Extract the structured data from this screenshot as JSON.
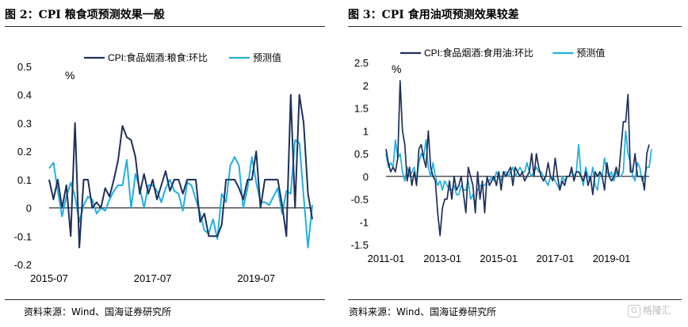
{
  "panels": [
    {
      "title": "图 2：CPI 粮食项预测效果一般",
      "source": "资料来源：Wind、国海证券研究所"
    },
    {
      "title": "图 3：CPI 食用油项预测效果较差",
      "source": "资料来源：Wind、国海证券研究所"
    }
  ],
  "watermark": {
    "icon": "G",
    "text": "格隆汇"
  },
  "colors": {
    "actual": "#1f2f5c",
    "predicted": "#1fb0e0"
  },
  "chart_data": [
    {
      "type": "line",
      "unit_label": "%",
      "ylim": [
        -0.2,
        0.5
      ],
      "yticks": [
        -0.2,
        -0.1,
        0,
        0.1,
        0.2,
        0.3,
        0.4,
        0.5
      ],
      "ytick_labels": [
        "-0.2",
        "-0.1",
        "0",
        "0.1",
        "0.2",
        "0.3",
        "0.4",
        "0.5"
      ],
      "x_start": "2015-07",
      "xticks": [
        {
          "index": 0,
          "label": "2015-07"
        },
        {
          "index": 24,
          "label": "2017-07"
        },
        {
          "index": 48,
          "label": "2019-07"
        }
      ],
      "legend": [
        "CPI:食品烟酒:粮食:环比",
        "预测值"
      ],
      "series": [
        {
          "name": "CPI:食品烟酒:粮食:环比",
          "values": [
            0.1,
            0.03,
            0.1,
            0.0,
            0.08,
            -0.1,
            0.3,
            -0.14,
            0.1,
            0.1,
            0.0,
            0.02,
            0.0,
            0.07,
            0.04,
            0.1,
            0.17,
            0.29,
            0.25,
            0.24,
            0.18,
            0.05,
            0.12,
            0.05,
            0.1,
            0.03,
            0.08,
            0.13,
            0.06,
            0.1,
            0.1,
            0.05,
            0.1,
            0.1,
            0.1,
            -0.05,
            -0.02,
            -0.1,
            -0.1,
            -0.1,
            -0.06,
            0.1,
            0.1,
            0.1,
            0.07,
            0.03,
            0.1,
            0.1,
            0.2,
            0.0,
            0.1,
            0.1,
            0.1,
            0.1,
            0.01,
            -0.1,
            0.4,
            0.0,
            0.4,
            0.3,
            0.05,
            -0.04
          ]
        },
        {
          "name": "预测值",
          "values": [
            0.14,
            0.16,
            0.06,
            -0.03,
            0.04,
            0.09,
            0.04,
            -0.05,
            0.01,
            0.04,
            0.03,
            -0.02,
            0.0,
            -0.01,
            0.03,
            0.06,
            0.08,
            0.08,
            0.17,
            0.0,
            0.12,
            0.07,
            0.0,
            0.08,
            0.08,
            0.06,
            0.02,
            0.07,
            0.1,
            0.06,
            0.05,
            -0.01,
            0.09,
            0.08,
            0.03,
            -0.02,
            -0.08,
            -0.09,
            -0.04,
            -0.11,
            0.05,
            0.02,
            0.15,
            0.18,
            0.15,
            0.0,
            0.07,
            0.18,
            0.09,
            0.02,
            0.02,
            0.01,
            0.04,
            0.07,
            -0.02,
            0.06,
            0.05,
            0.24,
            0.23,
            0.04,
            -0.14,
            0.01
          ]
        }
      ]
    },
    {
      "type": "line",
      "unit_label": "%",
      "ylim": [
        -1.5,
        2.5
      ],
      "yticks": [
        -1.5,
        -1,
        -0.5,
        0,
        0.5,
        1,
        1.5,
        2,
        2.5
      ],
      "ytick_labels": [
        "-1.5",
        "-1",
        "-0.5",
        "0",
        "0.5",
        "1",
        "1.5",
        "2",
        "2.5"
      ],
      "x_start": "2011-01",
      "xticks": [
        {
          "index": 0,
          "label": "2011-01"
        },
        {
          "index": 24,
          "label": "2013-01"
        },
        {
          "index": 48,
          "label": "2015-01"
        },
        {
          "index": 72,
          "label": "2017-01"
        },
        {
          "index": 96,
          "label": "2019-01"
        }
      ],
      "legend": [
        "CPI:食品烟酒:食用油:环比",
        "预测值"
      ],
      "series": [
        {
          "name": "CPI:食品烟酒:食用油:环比",
          "values": [
            0.6,
            0.3,
            0.1,
            0.2,
            0.1,
            0.4,
            2.1,
            1.0,
            0.7,
            -0.1,
            0.2,
            -0.2,
            0.1,
            -0.2,
            0.6,
            0.7,
            0.4,
            0.2,
            1.0,
            0.2,
            0.0,
            -0.1,
            -0.8,
            -1.3,
            -0.7,
            -0.5,
            -0.5,
            -0.1,
            -0.5,
            0.0,
            -0.3,
            -0.2,
            0.0,
            -0.4,
            -0.8,
            0.2,
            0.0,
            -0.2,
            -0.8,
            0.1,
            -0.5,
            -0.1,
            -0.8,
            0.0,
            -0.2,
            -0.1,
            0.0,
            -0.2,
            0.1,
            -0.3,
            0.1,
            0.0,
            0.1,
            0.2,
            -0.2,
            0.2,
            0.1,
            0.0,
            0.1,
            -0.1,
            0.0,
            0.1,
            0.5,
            0.0,
            0.5,
            0.2,
            0.0,
            -0.1,
            0.0,
            0.3,
            0.0,
            -0.1,
            0.4,
            0.0,
            -0.3,
            -0.1,
            -0.2,
            0.0,
            0.0,
            0.2,
            -0.1,
            0.1,
            0.1,
            0.0,
            -0.1,
            0.1,
            -0.2,
            0.0,
            -0.4,
            0.1,
            0.0,
            0.1,
            0.0,
            -0.3,
            0.3,
            0.0,
            -0.1,
            0.0,
            0.2,
            0.0,
            0.6,
            1.2,
            1.2,
            1.8,
            0.1,
            0.1,
            0.5,
            0.0,
            0.0,
            0.0,
            -0.3,
            0.5,
            0.7
          ]
        },
        {
          "name": "预测值",
          "values": [
            0.5,
            0.2,
            0.3,
            0.2,
            0.8,
            0.4,
            0.5,
            0.1,
            -0.1,
            0.2,
            0.0,
            0.1,
            0.2,
            -0.1,
            0.3,
            0.5,
            0.4,
            0.8,
            0.2,
            0.0,
            0.3,
            0.0,
            -0.2,
            -0.1,
            -0.3,
            -0.1,
            -0.2,
            -0.3,
            -0.3,
            -0.2,
            -0.4,
            -0.4,
            -0.2,
            -0.3,
            -0.3,
            -0.1,
            -0.5,
            -0.4,
            -0.6,
            -0.3,
            -0.2,
            -0.2,
            -0.2,
            -0.1,
            -0.1,
            0.0,
            -0.1,
            0.1,
            0.0,
            -0.1,
            0.1,
            0.1,
            0.0,
            0.1,
            0.2,
            0.0,
            0.1,
            0.2,
            0.1,
            0.1,
            0.3,
            0.1,
            0.0,
            0.1,
            0.2,
            0.1,
            0.1,
            0.0,
            -0.1,
            -0.2,
            0.0,
            0.0,
            -0.1,
            -0.2,
            -0.3,
            0.0,
            -0.1,
            0.0,
            0.0,
            0.1,
            0.0,
            0.1,
            0.7,
            0.0,
            -0.2,
            0.2,
            0.0,
            -0.1,
            0.2,
            -0.2,
            -0.3,
            0.1,
            0.0,
            0.4,
            0.1,
            0.0,
            0.1,
            -0.1,
            0.1,
            0.0,
            0.0,
            0.1,
            1.0,
            0.5,
            0.3,
            0.0,
            -0.1,
            0.3,
            0.2,
            -0.1,
            0.0,
            0.2,
            0.2,
            0.6
          ]
        }
      ]
    }
  ]
}
